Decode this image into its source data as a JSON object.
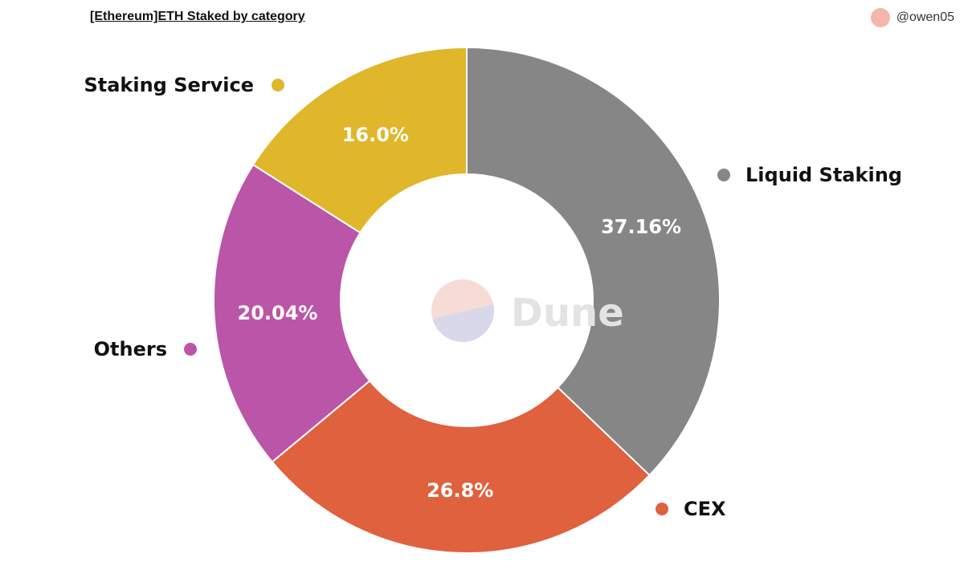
{
  "header": {
    "title": "[Ethereum]ETH Staked by category",
    "author": "@owen05",
    "avatar_color": "#f3b6ac"
  },
  "watermark": {
    "text": "Dune",
    "logo_top_color": "#f7dcd6",
    "logo_bottom_color": "#d9d8ea"
  },
  "chart_data": {
    "type": "pie",
    "donut": true,
    "slices": [
      {
        "category": "Liquid Staking",
        "value": 37.16,
        "label": "37.16%",
        "color": "#868686"
      },
      {
        "category": "CEX",
        "value": 26.8,
        "label": "26.8%",
        "color": "#df613d"
      },
      {
        "category": "Others",
        "value": 20.04,
        "label": "20.04%",
        "color": "#bb55a7"
      },
      {
        "category": "Staking Service",
        "value": 16.0,
        "label": "16.0%",
        "color": "#e0b62a"
      }
    ]
  }
}
